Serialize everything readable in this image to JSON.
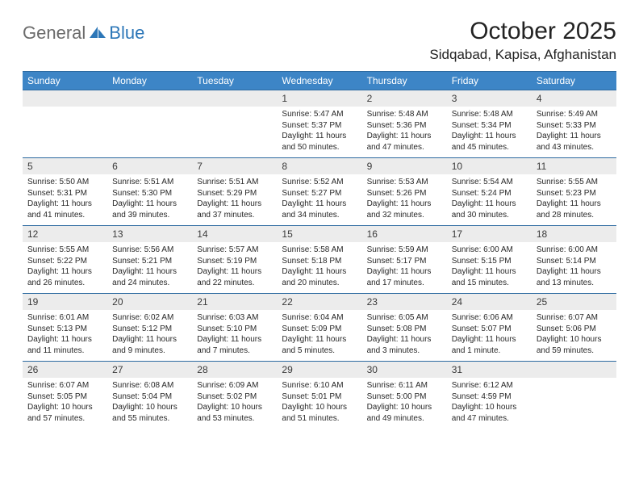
{
  "logo": {
    "general": "General",
    "blue": "Blue",
    "icon_color": "#2d77b8"
  },
  "title": {
    "month": "October 2025",
    "location": "Sidqabad, Kapisa, Afghanistan"
  },
  "colors": {
    "header_bg": "#3d85c6",
    "header_border": "#2d6aa0",
    "daynum_bg": "#ececec",
    "text": "#232323"
  },
  "dayHeaders": [
    "Sunday",
    "Monday",
    "Tuesday",
    "Wednesday",
    "Thursday",
    "Friday",
    "Saturday"
  ],
  "weeks": [
    [
      {
        "n": "",
        "sr": "",
        "ss": "",
        "dl": ""
      },
      {
        "n": "",
        "sr": "",
        "ss": "",
        "dl": ""
      },
      {
        "n": "",
        "sr": "",
        "ss": "",
        "dl": ""
      },
      {
        "n": "1",
        "sr": "Sunrise: 5:47 AM",
        "ss": "Sunset: 5:37 PM",
        "dl": "Daylight: 11 hours and 50 minutes."
      },
      {
        "n": "2",
        "sr": "Sunrise: 5:48 AM",
        "ss": "Sunset: 5:36 PM",
        "dl": "Daylight: 11 hours and 47 minutes."
      },
      {
        "n": "3",
        "sr": "Sunrise: 5:48 AM",
        "ss": "Sunset: 5:34 PM",
        "dl": "Daylight: 11 hours and 45 minutes."
      },
      {
        "n": "4",
        "sr": "Sunrise: 5:49 AM",
        "ss": "Sunset: 5:33 PM",
        "dl": "Daylight: 11 hours and 43 minutes."
      }
    ],
    [
      {
        "n": "5",
        "sr": "Sunrise: 5:50 AM",
        "ss": "Sunset: 5:31 PM",
        "dl": "Daylight: 11 hours and 41 minutes."
      },
      {
        "n": "6",
        "sr": "Sunrise: 5:51 AM",
        "ss": "Sunset: 5:30 PM",
        "dl": "Daylight: 11 hours and 39 minutes."
      },
      {
        "n": "7",
        "sr": "Sunrise: 5:51 AM",
        "ss": "Sunset: 5:29 PM",
        "dl": "Daylight: 11 hours and 37 minutes."
      },
      {
        "n": "8",
        "sr": "Sunrise: 5:52 AM",
        "ss": "Sunset: 5:27 PM",
        "dl": "Daylight: 11 hours and 34 minutes."
      },
      {
        "n": "9",
        "sr": "Sunrise: 5:53 AM",
        "ss": "Sunset: 5:26 PM",
        "dl": "Daylight: 11 hours and 32 minutes."
      },
      {
        "n": "10",
        "sr": "Sunrise: 5:54 AM",
        "ss": "Sunset: 5:24 PM",
        "dl": "Daylight: 11 hours and 30 minutes."
      },
      {
        "n": "11",
        "sr": "Sunrise: 5:55 AM",
        "ss": "Sunset: 5:23 PM",
        "dl": "Daylight: 11 hours and 28 minutes."
      }
    ],
    [
      {
        "n": "12",
        "sr": "Sunrise: 5:55 AM",
        "ss": "Sunset: 5:22 PM",
        "dl": "Daylight: 11 hours and 26 minutes."
      },
      {
        "n": "13",
        "sr": "Sunrise: 5:56 AM",
        "ss": "Sunset: 5:21 PM",
        "dl": "Daylight: 11 hours and 24 minutes."
      },
      {
        "n": "14",
        "sr": "Sunrise: 5:57 AM",
        "ss": "Sunset: 5:19 PM",
        "dl": "Daylight: 11 hours and 22 minutes."
      },
      {
        "n": "15",
        "sr": "Sunrise: 5:58 AM",
        "ss": "Sunset: 5:18 PM",
        "dl": "Daylight: 11 hours and 20 minutes."
      },
      {
        "n": "16",
        "sr": "Sunrise: 5:59 AM",
        "ss": "Sunset: 5:17 PM",
        "dl": "Daylight: 11 hours and 17 minutes."
      },
      {
        "n": "17",
        "sr": "Sunrise: 6:00 AM",
        "ss": "Sunset: 5:15 PM",
        "dl": "Daylight: 11 hours and 15 minutes."
      },
      {
        "n": "18",
        "sr": "Sunrise: 6:00 AM",
        "ss": "Sunset: 5:14 PM",
        "dl": "Daylight: 11 hours and 13 minutes."
      }
    ],
    [
      {
        "n": "19",
        "sr": "Sunrise: 6:01 AM",
        "ss": "Sunset: 5:13 PM",
        "dl": "Daylight: 11 hours and 11 minutes."
      },
      {
        "n": "20",
        "sr": "Sunrise: 6:02 AM",
        "ss": "Sunset: 5:12 PM",
        "dl": "Daylight: 11 hours and 9 minutes."
      },
      {
        "n": "21",
        "sr": "Sunrise: 6:03 AM",
        "ss": "Sunset: 5:10 PM",
        "dl": "Daylight: 11 hours and 7 minutes."
      },
      {
        "n": "22",
        "sr": "Sunrise: 6:04 AM",
        "ss": "Sunset: 5:09 PM",
        "dl": "Daylight: 11 hours and 5 minutes."
      },
      {
        "n": "23",
        "sr": "Sunrise: 6:05 AM",
        "ss": "Sunset: 5:08 PM",
        "dl": "Daylight: 11 hours and 3 minutes."
      },
      {
        "n": "24",
        "sr": "Sunrise: 6:06 AM",
        "ss": "Sunset: 5:07 PM",
        "dl": "Daylight: 11 hours and 1 minute."
      },
      {
        "n": "25",
        "sr": "Sunrise: 6:07 AM",
        "ss": "Sunset: 5:06 PM",
        "dl": "Daylight: 10 hours and 59 minutes."
      }
    ],
    [
      {
        "n": "26",
        "sr": "Sunrise: 6:07 AM",
        "ss": "Sunset: 5:05 PM",
        "dl": "Daylight: 10 hours and 57 minutes."
      },
      {
        "n": "27",
        "sr": "Sunrise: 6:08 AM",
        "ss": "Sunset: 5:04 PM",
        "dl": "Daylight: 10 hours and 55 minutes."
      },
      {
        "n": "28",
        "sr": "Sunrise: 6:09 AM",
        "ss": "Sunset: 5:02 PM",
        "dl": "Daylight: 10 hours and 53 minutes."
      },
      {
        "n": "29",
        "sr": "Sunrise: 6:10 AM",
        "ss": "Sunset: 5:01 PM",
        "dl": "Daylight: 10 hours and 51 minutes."
      },
      {
        "n": "30",
        "sr": "Sunrise: 6:11 AM",
        "ss": "Sunset: 5:00 PM",
        "dl": "Daylight: 10 hours and 49 minutes."
      },
      {
        "n": "31",
        "sr": "Sunrise: 6:12 AM",
        "ss": "Sunset: 4:59 PM",
        "dl": "Daylight: 10 hours and 47 minutes."
      },
      {
        "n": "",
        "sr": "",
        "ss": "",
        "dl": ""
      }
    ]
  ]
}
